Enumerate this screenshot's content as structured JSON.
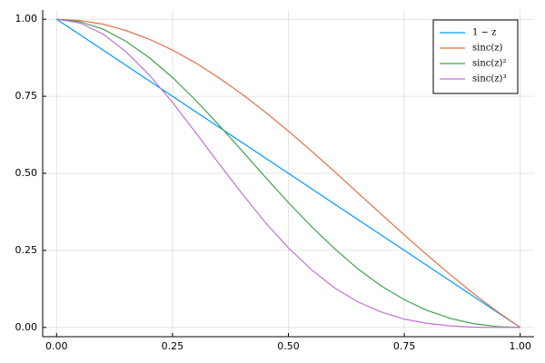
{
  "chart_data": {
    "type": "line",
    "x": [
      0,
      0.05,
      0.1,
      0.15,
      0.2,
      0.25,
      0.3,
      0.35,
      0.4,
      0.45,
      0.5,
      0.55,
      0.6,
      0.65,
      0.7,
      0.75,
      0.8,
      0.85,
      0.9,
      0.95,
      1
    ],
    "series": [
      {
        "name": "1 − z",
        "color": "#009af9",
        "values": [
          1,
          0.95,
          0.9,
          0.85,
          0.8,
          0.75,
          0.7,
          0.65,
          0.6,
          0.55,
          0.5,
          0.45,
          0.4,
          0.35,
          0.3,
          0.25,
          0.2,
          0.15,
          0.1,
          0.05,
          0
        ]
      },
      {
        "name": "sinc(z)",
        "color": "#e26f46",
        "values": [
          1,
          0.996,
          0.984,
          0.963,
          0.935,
          0.9,
          0.858,
          0.81,
          0.757,
          0.699,
          0.637,
          0.572,
          0.505,
          0.436,
          0.368,
          0.3,
          0.234,
          0.17,
          0.109,
          0.052,
          0
        ]
      },
      {
        "name": "sinc(z)²",
        "color": "#3ea44e",
        "values": [
          1,
          0.992,
          0.968,
          0.928,
          0.875,
          0.811,
          0.737,
          0.657,
          0.573,
          0.488,
          0.405,
          0.327,
          0.255,
          0.19,
          0.135,
          0.09,
          0.055,
          0.029,
          0.012,
          0.003,
          0
        ]
      },
      {
        "name": "sinc(z)³",
        "color": "#c271d2",
        "values": [
          1,
          0.988,
          0.952,
          0.894,
          0.819,
          0.73,
          0.632,
          0.532,
          0.434,
          0.341,
          0.258,
          0.187,
          0.128,
          0.083,
          0.05,
          0.027,
          0.013,
          0.005,
          0.001,
          0.0,
          0
        ]
      }
    ],
    "xlim": [
      -0.03,
      1.03
    ],
    "ylim": [
      -0.03,
      1.03
    ],
    "xticks": [
      {
        "value": 0,
        "label": "0.00"
      },
      {
        "value": 0.25,
        "label": "0.25"
      },
      {
        "value": 0.5,
        "label": "0.50"
      },
      {
        "value": 0.75,
        "label": "0.75"
      },
      {
        "value": 1,
        "label": "1.00"
      }
    ],
    "yticks": [
      {
        "value": 0,
        "label": "0.00"
      },
      {
        "value": 0.25,
        "label": "0.25"
      },
      {
        "value": 0.5,
        "label": "0.50"
      },
      {
        "value": 0.75,
        "label": "0.75"
      },
      {
        "value": 1,
        "label": "1.00"
      }
    ],
    "grid": true,
    "legend": "top-right"
  }
}
